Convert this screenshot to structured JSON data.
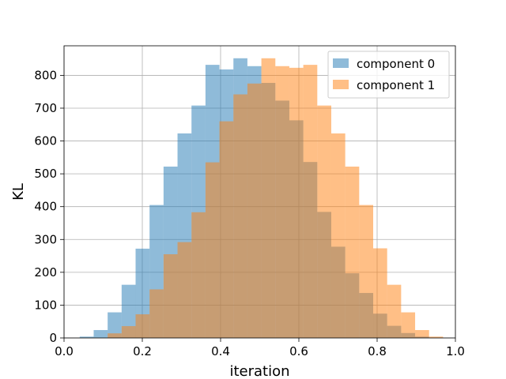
{
  "chart_data": {
    "type": "histogram",
    "xlabel": "iteration",
    "ylabel": "KL",
    "xlim": [
      0.0,
      1.0
    ],
    "ylim": [
      0,
      890
    ],
    "x_ticks": [
      "0.0",
      "0.2",
      "0.4",
      "0.6",
      "0.8",
      "1.0"
    ],
    "y_ticks": [
      "0",
      "100",
      "200",
      "300",
      "400",
      "500",
      "600",
      "700",
      "800"
    ],
    "grid": true,
    "legend_position": "top-right",
    "series": [
      {
        "name": "component 0",
        "color": "#1f77b4",
        "bin_start": 0.04,
        "bin_width": 0.03571,
        "values": [
          4,
          24,
          78,
          162,
          272,
          405,
          522,
          623,
          708,
          832,
          818,
          852,
          828,
          777,
          723,
          663,
          536,
          384,
          278,
          197,
          137,
          74,
          37,
          15,
          4
        ]
      },
      {
        "name": "component 1",
        "color": "#ff7f0e",
        "bin_start": 0.04,
        "bin_width": 0.03571,
        "values": [
          0,
          0,
          14,
          36,
          72,
          148,
          255,
          292,
          383,
          535,
          660,
          742,
          775,
          852,
          828,
          823,
          832,
          708,
          623,
          522,
          405,
          273,
          162,
          78,
          24,
          4
        ]
      }
    ]
  }
}
